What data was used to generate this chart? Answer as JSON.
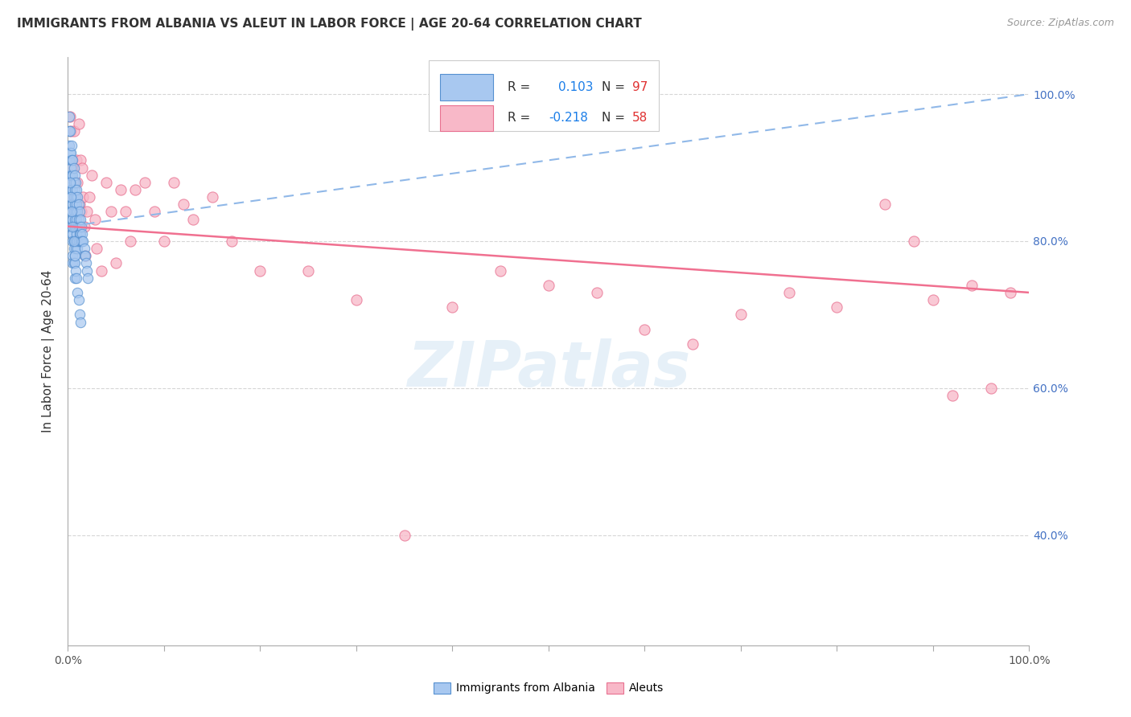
{
  "title": "IMMIGRANTS FROM ALBANIA VS ALEUT IN LABOR FORCE | AGE 20-64 CORRELATION CHART",
  "source": "Source: ZipAtlas.com",
  "ylabel": "In Labor Force | Age 20-64",
  "watermark": "ZIPatlas",
  "albania_color_face": "#a8c8f0",
  "albania_color_edge": "#5590d0",
  "aleut_color_face": "#f8b8c8",
  "aleut_color_edge": "#e87090",
  "albania_line_color": "#90b8e8",
  "aleut_line_color": "#f07090",
  "R_albania": 0.103,
  "N_albania": 97,
  "R_aleut": -0.218,
  "N_aleut": 58,
  "albania_x": [
    0.001,
    0.001,
    0.001,
    0.001,
    0.001,
    0.002,
    0.002,
    0.002,
    0.002,
    0.003,
    0.003,
    0.003,
    0.003,
    0.003,
    0.003,
    0.004,
    0.004,
    0.004,
    0.004,
    0.004,
    0.004,
    0.004,
    0.005,
    0.005,
    0.005,
    0.005,
    0.005,
    0.005,
    0.005,
    0.005,
    0.005,
    0.006,
    0.006,
    0.006,
    0.006,
    0.006,
    0.006,
    0.006,
    0.006,
    0.007,
    0.007,
    0.007,
    0.007,
    0.007,
    0.007,
    0.007,
    0.007,
    0.007,
    0.008,
    0.008,
    0.008,
    0.008,
    0.008,
    0.008,
    0.009,
    0.009,
    0.009,
    0.009,
    0.009,
    0.01,
    0.01,
    0.01,
    0.01,
    0.01,
    0.011,
    0.011,
    0.011,
    0.011,
    0.012,
    0.012,
    0.012,
    0.013,
    0.013,
    0.013,
    0.014,
    0.014,
    0.015,
    0.015,
    0.016,
    0.017,
    0.017,
    0.018,
    0.019,
    0.02,
    0.021,
    0.002,
    0.003,
    0.004,
    0.005,
    0.006,
    0.007,
    0.008,
    0.009,
    0.01,
    0.011,
    0.012,
    0.013
  ],
  "albania_y": [
    0.97,
    0.95,
    0.93,
    0.91,
    0.89,
    0.95,
    0.92,
    0.89,
    0.87,
    0.92,
    0.9,
    0.88,
    0.86,
    0.84,
    0.82,
    0.93,
    0.91,
    0.89,
    0.87,
    0.85,
    0.83,
    0.81,
    0.91,
    0.89,
    0.87,
    0.85,
    0.83,
    0.81,
    0.8,
    0.78,
    0.77,
    0.9,
    0.88,
    0.86,
    0.84,
    0.82,
    0.8,
    0.79,
    0.77,
    0.89,
    0.87,
    0.85,
    0.83,
    0.82,
    0.8,
    0.78,
    0.77,
    0.75,
    0.88,
    0.86,
    0.84,
    0.82,
    0.8,
    0.79,
    0.87,
    0.85,
    0.83,
    0.81,
    0.8,
    0.86,
    0.84,
    0.82,
    0.8,
    0.79,
    0.85,
    0.83,
    0.82,
    0.8,
    0.84,
    0.82,
    0.81,
    0.83,
    0.81,
    0.8,
    0.82,
    0.8,
    0.81,
    0.8,
    0.8,
    0.79,
    0.78,
    0.78,
    0.77,
    0.76,
    0.75,
    0.88,
    0.86,
    0.84,
    0.82,
    0.8,
    0.78,
    0.76,
    0.75,
    0.73,
    0.72,
    0.7,
    0.69
  ],
  "aleut_x": [
    0.002,
    0.003,
    0.004,
    0.005,
    0.006,
    0.007,
    0.008,
    0.009,
    0.01,
    0.011,
    0.012,
    0.013,
    0.014,
    0.015,
    0.016,
    0.017,
    0.018,
    0.02,
    0.022,
    0.025,
    0.028,
    0.03,
    0.035,
    0.04,
    0.045,
    0.05,
    0.055,
    0.06,
    0.065,
    0.07,
    0.08,
    0.09,
    0.1,
    0.11,
    0.12,
    0.13,
    0.15,
    0.17,
    0.2,
    0.25,
    0.3,
    0.35,
    0.4,
    0.45,
    0.5,
    0.55,
    0.6,
    0.65,
    0.7,
    0.75,
    0.8,
    0.85,
    0.88,
    0.9,
    0.92,
    0.94,
    0.96,
    0.98
  ],
  "aleut_y": [
    0.97,
    0.95,
    0.9,
    0.86,
    0.95,
    0.88,
    0.84,
    0.91,
    0.88,
    0.96,
    0.85,
    0.91,
    0.84,
    0.9,
    0.86,
    0.82,
    0.78,
    0.84,
    0.86,
    0.89,
    0.83,
    0.79,
    0.76,
    0.88,
    0.84,
    0.77,
    0.87,
    0.84,
    0.8,
    0.87,
    0.88,
    0.84,
    0.8,
    0.88,
    0.85,
    0.83,
    0.86,
    0.8,
    0.76,
    0.76,
    0.72,
    0.4,
    0.71,
    0.76,
    0.74,
    0.73,
    0.68,
    0.66,
    0.7,
    0.73,
    0.71,
    0.85,
    0.8,
    0.72,
    0.59,
    0.74,
    0.6,
    0.73
  ],
  "xlim": [
    0.0,
    1.0
  ],
  "ylim": [
    0.25,
    1.05
  ],
  "y_ticks": [
    0.4,
    0.6,
    0.8,
    1.0
  ],
  "y_tick_labels": [
    "40.0%",
    "60.0%",
    "80.0%",
    "100.0%"
  ],
  "albania_trend_x0": 0.0,
  "albania_trend_x1": 1.0,
  "albania_trend_y0": 0.82,
  "albania_trend_y1": 1.0,
  "aleut_trend_x0": 0.0,
  "aleut_trend_x1": 1.0,
  "aleut_trend_y0": 0.82,
  "aleut_trend_y1": 0.73
}
